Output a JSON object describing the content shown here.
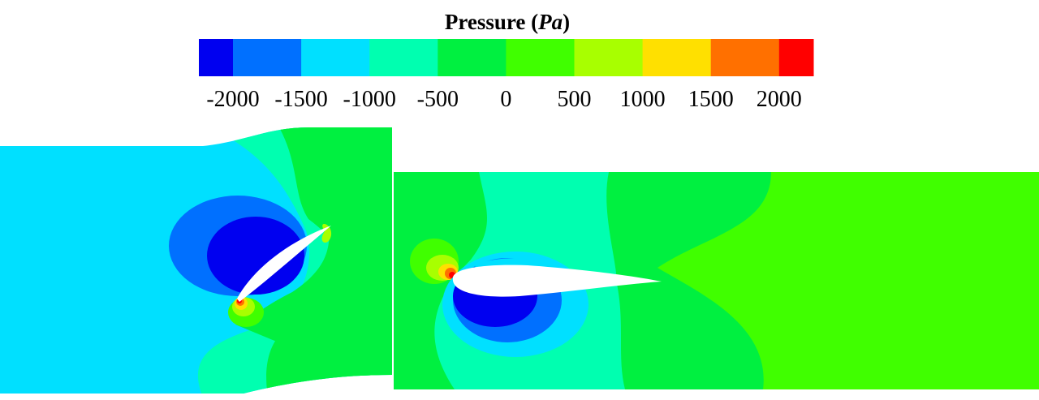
{
  "chart_data": {
    "type": "heatmap",
    "title": "Pressure",
    "title_unit": "Pa",
    "colorbar": {
      "ticks": [
        "-2000",
        "-1500",
        "-1000",
        "-500",
        "0",
        "500",
        "1000",
        "1500",
        "2000"
      ],
      "levels": [
        -2000,
        -1500,
        -1000,
        -500,
        0,
        500,
        1000,
        1500,
        2000
      ],
      "colors": [
        "#0000f0",
        "#0070ff",
        "#00e0ff",
        "#00ffb0",
        "#00f040",
        "#40ff00",
        "#a8ff00",
        "#ffe000",
        "#ff7000",
        "#ff0000"
      ],
      "orientation": "horizontal",
      "placement": "top"
    },
    "panels": [
      {
        "description_value": "left",
        "airfoil": "pitched up, leading edge bottom-left",
        "min_region": "-2000",
        "max_region": "2000"
      },
      {
        "description_value": "right",
        "airfoil": "near zero angle",
        "min_region": "-2000",
        "max_region": "2000"
      }
    ]
  }
}
